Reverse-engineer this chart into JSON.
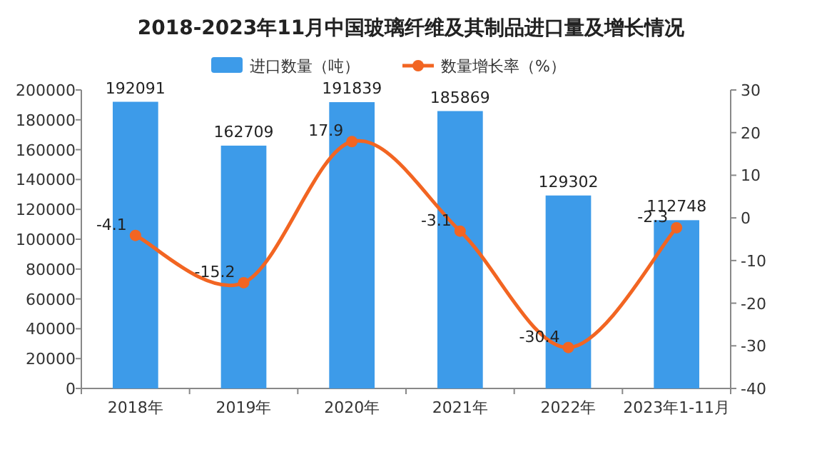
{
  "chart_data": {
    "type": "bar",
    "title": "2018-2023年11月中国玻璃纤维及其制品进口量及增长情况",
    "categories": [
      "2018年",
      "2019年",
      "2020年",
      "2021年",
      "2022年",
      "2023年1-11月"
    ],
    "series": [
      {
        "name": "进口数量（吨）",
        "color": "#3d9be9",
        "values": [
          192091,
          162709,
          191839,
          185869,
          129302,
          112748
        ]
      },
      {
        "name": "数量增长率（%）",
        "type": "line",
        "axis": "y2",
        "color": "#f26522",
        "marker": "circle",
        "values": [
          -4.1,
          -15.2,
          17.9,
          -3.1,
          -30.4,
          -2.3
        ]
      }
    ],
    "ylim": [
      0,
      200000
    ],
    "yticks": [
      0,
      20000,
      40000,
      60000,
      80000,
      100000,
      120000,
      140000,
      160000,
      180000,
      200000
    ],
    "y2lim": [
      -40,
      30
    ],
    "y2ticks": [
      -40,
      -30,
      -20,
      -10,
      0,
      10,
      20,
      30
    ],
    "data_labels": true,
    "legend": "top",
    "grid": false
  }
}
